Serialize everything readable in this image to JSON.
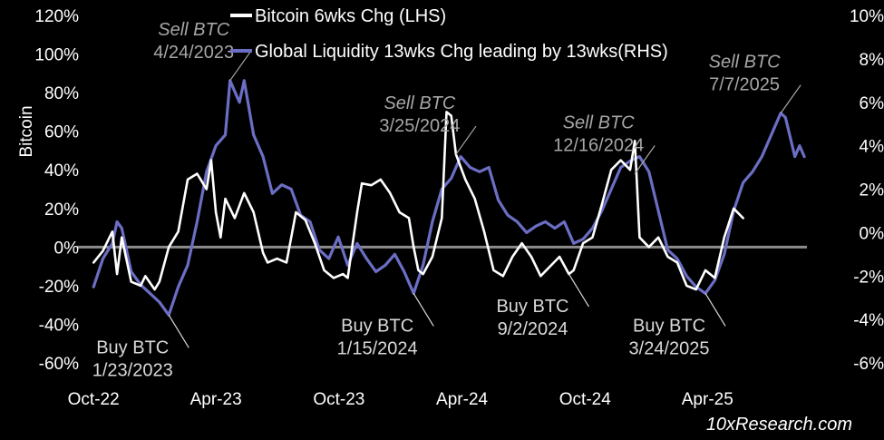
{
  "chart_data": {
    "type": "line",
    "ylabel": "Bitcoin",
    "source": "10xResearch.com",
    "left_axis": {
      "ticks": [
        "-60%",
        "-40%",
        "-20%",
        "0%",
        "20%",
        "40%",
        "60%",
        "80%",
        "100%",
        "120%"
      ],
      "range": [
        -60,
        120
      ]
    },
    "right_axis": {
      "ticks": [
        "-6%",
        "-4%",
        "-2%",
        "0%",
        "2%",
        "4%",
        "6%",
        "8%",
        "10%"
      ],
      "range": [
        -6,
        10
      ]
    },
    "x_ticks": [
      "Oct-22",
      "Apr-23",
      "Oct-23",
      "Apr-24",
      "Oct-24",
      "Apr-25"
    ],
    "x_range": [
      "2022-09-20",
      "2025-08-31"
    ],
    "zero_line_color": "#8c8c8c",
    "series": [
      {
        "name": "Bitcoin 6wks Chg (LHS)",
        "axis": "left",
        "color": "#ffffff",
        "points": [
          [
            "2022-10-01",
            -8
          ],
          [
            "2022-10-15",
            -2
          ],
          [
            "2022-10-29",
            8
          ],
          [
            "2022-11-05",
            -14
          ],
          [
            "2022-11-12",
            5
          ],
          [
            "2022-11-26",
            -18
          ],
          [
            "2022-12-10",
            -20
          ],
          [
            "2022-12-17",
            -15
          ],
          [
            "2022-12-31",
            -22
          ],
          [
            "2023-01-07",
            -18
          ],
          [
            "2023-01-21",
            0
          ],
          [
            "2023-02-04",
            8
          ],
          [
            "2023-02-18",
            35
          ],
          [
            "2023-03-04",
            38
          ],
          [
            "2023-03-18",
            30
          ],
          [
            "2023-03-25",
            45
          ],
          [
            "2023-04-01",
            18
          ],
          [
            "2023-04-08",
            5
          ],
          [
            "2023-04-15",
            25
          ],
          [
            "2023-04-29",
            15
          ],
          [
            "2023-05-13",
            28
          ],
          [
            "2023-05-27",
            18
          ],
          [
            "2023-06-10",
            -3
          ],
          [
            "2023-06-17",
            -8
          ],
          [
            "2023-07-01",
            -6
          ],
          [
            "2023-07-15",
            -8
          ],
          [
            "2023-07-29",
            18
          ],
          [
            "2023-08-12",
            14
          ],
          [
            "2023-08-26",
            2
          ],
          [
            "2023-09-09",
            -12
          ],
          [
            "2023-09-23",
            -16
          ],
          [
            "2023-10-07",
            -14
          ],
          [
            "2023-10-14",
            -16
          ],
          [
            "2023-10-28",
            18
          ],
          [
            "2023-11-04",
            33
          ],
          [
            "2023-11-18",
            32
          ],
          [
            "2023-12-02",
            35
          ],
          [
            "2023-12-16",
            28
          ],
          [
            "2023-12-30",
            18
          ],
          [
            "2024-01-13",
            15
          ],
          [
            "2024-01-20",
            0
          ],
          [
            "2024-01-27",
            -12
          ],
          [
            "2024-02-03",
            -14
          ],
          [
            "2024-02-17",
            -5
          ],
          [
            "2024-03-02",
            15
          ],
          [
            "2024-03-09",
            70
          ],
          [
            "2024-03-16",
            68
          ],
          [
            "2024-03-23",
            48
          ],
          [
            "2024-04-06",
            35
          ],
          [
            "2024-04-20",
            25
          ],
          [
            "2024-05-04",
            8
          ],
          [
            "2024-05-18",
            -12
          ],
          [
            "2024-06-01",
            -15
          ],
          [
            "2024-06-15",
            -5
          ],
          [
            "2024-06-29",
            2
          ],
          [
            "2024-07-13",
            -5
          ],
          [
            "2024-07-27",
            -15
          ],
          [
            "2024-08-10",
            -10
          ],
          [
            "2024-08-24",
            -5
          ],
          [
            "2024-09-07",
            -14
          ],
          [
            "2024-09-14",
            -12
          ],
          [
            "2024-09-28",
            2
          ],
          [
            "2024-10-12",
            5
          ],
          [
            "2024-10-26",
            22
          ],
          [
            "2024-11-09",
            40
          ],
          [
            "2024-11-23",
            45
          ],
          [
            "2024-12-07",
            40
          ],
          [
            "2024-12-14",
            55
          ],
          [
            "2024-12-21",
            5
          ],
          [
            "2025-01-04",
            0
          ],
          [
            "2025-01-18",
            5
          ],
          [
            "2025-02-01",
            -5
          ],
          [
            "2025-02-15",
            -8
          ],
          [
            "2025-03-01",
            -20
          ],
          [
            "2025-03-15",
            -22
          ],
          [
            "2025-03-29",
            -12
          ],
          [
            "2025-04-12",
            -16
          ],
          [
            "2025-04-26",
            5
          ],
          [
            "2025-05-10",
            20
          ],
          [
            "2025-05-24",
            15
          ]
        ]
      },
      {
        "name": "Global Liquidity 13wks Chg leading by 13wks(RHS)",
        "axis": "right",
        "color": "#6b6ec4",
        "points": [
          [
            "2022-10-01",
            -2.5
          ],
          [
            "2022-10-15",
            -1.2
          ],
          [
            "2022-10-29",
            -0.5
          ],
          [
            "2022-11-05",
            0.5
          ],
          [
            "2022-11-12",
            0.2
          ],
          [
            "2022-11-26",
            -1.8
          ],
          [
            "2022-12-10",
            -2.4
          ],
          [
            "2022-12-24",
            -2.8
          ],
          [
            "2023-01-07",
            -3.2
          ],
          [
            "2023-01-21",
            -3.8
          ],
          [
            "2023-02-04",
            -2.5
          ],
          [
            "2023-02-18",
            -1.5
          ],
          [
            "2023-03-04",
            0.5
          ],
          [
            "2023-03-18",
            2.8
          ],
          [
            "2023-04-01",
            4.0
          ],
          [
            "2023-04-15",
            4.5
          ],
          [
            "2023-04-22",
            7.0
          ],
          [
            "2023-05-06",
            6.0
          ],
          [
            "2023-05-13",
            7.0
          ],
          [
            "2023-05-27",
            4.5
          ],
          [
            "2023-06-10",
            3.5
          ],
          [
            "2023-06-24",
            1.8
          ],
          [
            "2023-07-08",
            2.2
          ],
          [
            "2023-07-22",
            2.0
          ],
          [
            "2023-08-05",
            0.8
          ],
          [
            "2023-08-19",
            0.5
          ],
          [
            "2023-09-02",
            -0.8
          ],
          [
            "2023-09-16",
            -1.2
          ],
          [
            "2023-09-30",
            -0.2
          ],
          [
            "2023-10-14",
            -1.5
          ],
          [
            "2023-10-28",
            -0.5
          ],
          [
            "2023-11-11",
            -1.2
          ],
          [
            "2023-11-25",
            -1.8
          ],
          [
            "2023-12-09",
            -1.5
          ],
          [
            "2023-12-23",
            -1.0
          ],
          [
            "2024-01-06",
            -1.8
          ],
          [
            "2024-01-20",
            -2.8
          ],
          [
            "2024-02-03",
            -1.5
          ],
          [
            "2024-02-17",
            0.5
          ],
          [
            "2024-03-02",
            2.0
          ],
          [
            "2024-03-16",
            2.5
          ],
          [
            "2024-03-30",
            3.5
          ],
          [
            "2024-04-13",
            3.0
          ],
          [
            "2024-04-27",
            2.8
          ],
          [
            "2024-05-11",
            3.0
          ],
          [
            "2024-05-25",
            1.5
          ],
          [
            "2024-06-08",
            0.8
          ],
          [
            "2024-06-22",
            0.5
          ],
          [
            "2024-07-06",
            0.0
          ],
          [
            "2024-07-20",
            0.3
          ],
          [
            "2024-08-03",
            0.5
          ],
          [
            "2024-08-17",
            0.2
          ],
          [
            "2024-08-31",
            0.5
          ],
          [
            "2024-09-14",
            -0.5
          ],
          [
            "2024-09-28",
            -0.3
          ],
          [
            "2024-10-12",
            0.2
          ],
          [
            "2024-10-26",
            1.0
          ],
          [
            "2024-11-09",
            2.0
          ],
          [
            "2024-11-23",
            3.0
          ],
          [
            "2024-12-07",
            3.3
          ],
          [
            "2024-12-21",
            3.5
          ],
          [
            "2025-01-04",
            2.8
          ],
          [
            "2025-01-18",
            1.0
          ],
          [
            "2025-02-01",
            -0.8
          ],
          [
            "2025-02-15",
            -1.2
          ],
          [
            "2025-03-01",
            -2.0
          ],
          [
            "2025-03-15",
            -2.5
          ],
          [
            "2025-03-29",
            -2.8
          ],
          [
            "2025-04-12",
            -2.2
          ],
          [
            "2025-04-26",
            -1.0
          ],
          [
            "2025-05-10",
            1.0
          ],
          [
            "2025-05-24",
            2.3
          ],
          [
            "2025-06-07",
            2.8
          ],
          [
            "2025-06-21",
            3.5
          ],
          [
            "2025-07-05",
            4.5
          ],
          [
            "2025-07-19",
            5.5
          ],
          [
            "2025-07-26",
            5.3
          ],
          [
            "2025-08-09",
            3.5
          ],
          [
            "2025-08-16",
            4.0
          ],
          [
            "2025-08-23",
            3.5
          ]
        ]
      }
    ],
    "annotations": [
      {
        "lines": [
          "Sell BTC",
          "4/24/2023"
        ],
        "kind": "sell",
        "point": [
          "2023-04-22",
          7.0
        ],
        "axis": "right",
        "text_side": "left"
      },
      {
        "lines": [
          "Sell BTC",
          "3/25/2024"
        ],
        "kind": "sell",
        "point": [
          "2024-03-23",
          48
        ],
        "axis": "left",
        "text_side": "left"
      },
      {
        "lines": [
          "Sell BTC",
          "12/16/2024"
        ],
        "kind": "sell",
        "point": [
          "2024-12-14",
          38
        ],
        "axis": "left",
        "text_side": "left"
      },
      {
        "lines": [
          "Sell BTC",
          "7/7/2025"
        ],
        "kind": "sell",
        "point": [
          "2025-07-19",
          5.5
        ],
        "axis": "right",
        "text_side": "left"
      },
      {
        "lines": [
          "Buy BTC",
          "1/23/2023"
        ],
        "kind": "buy",
        "point": [
          "2023-01-21",
          -3.8
        ],
        "axis": "right",
        "text_side": "left"
      },
      {
        "lines": [
          "Buy BTC",
          "1/15/2024"
        ],
        "kind": "buy",
        "point": [
          "2024-01-20",
          -2.8
        ],
        "axis": "right",
        "text_side": "left"
      },
      {
        "lines": [
          "Buy BTC",
          "9/2/2024"
        ],
        "kind": "buy",
        "point": [
          "2024-09-07",
          -14
        ],
        "axis": "left",
        "text_side": "left"
      },
      {
        "lines": [
          "Buy BTC",
          "3/24/2025"
        ],
        "kind": "buy",
        "point": [
          "2025-03-29",
          -2.8
        ],
        "axis": "right",
        "text_side": "left"
      }
    ]
  }
}
